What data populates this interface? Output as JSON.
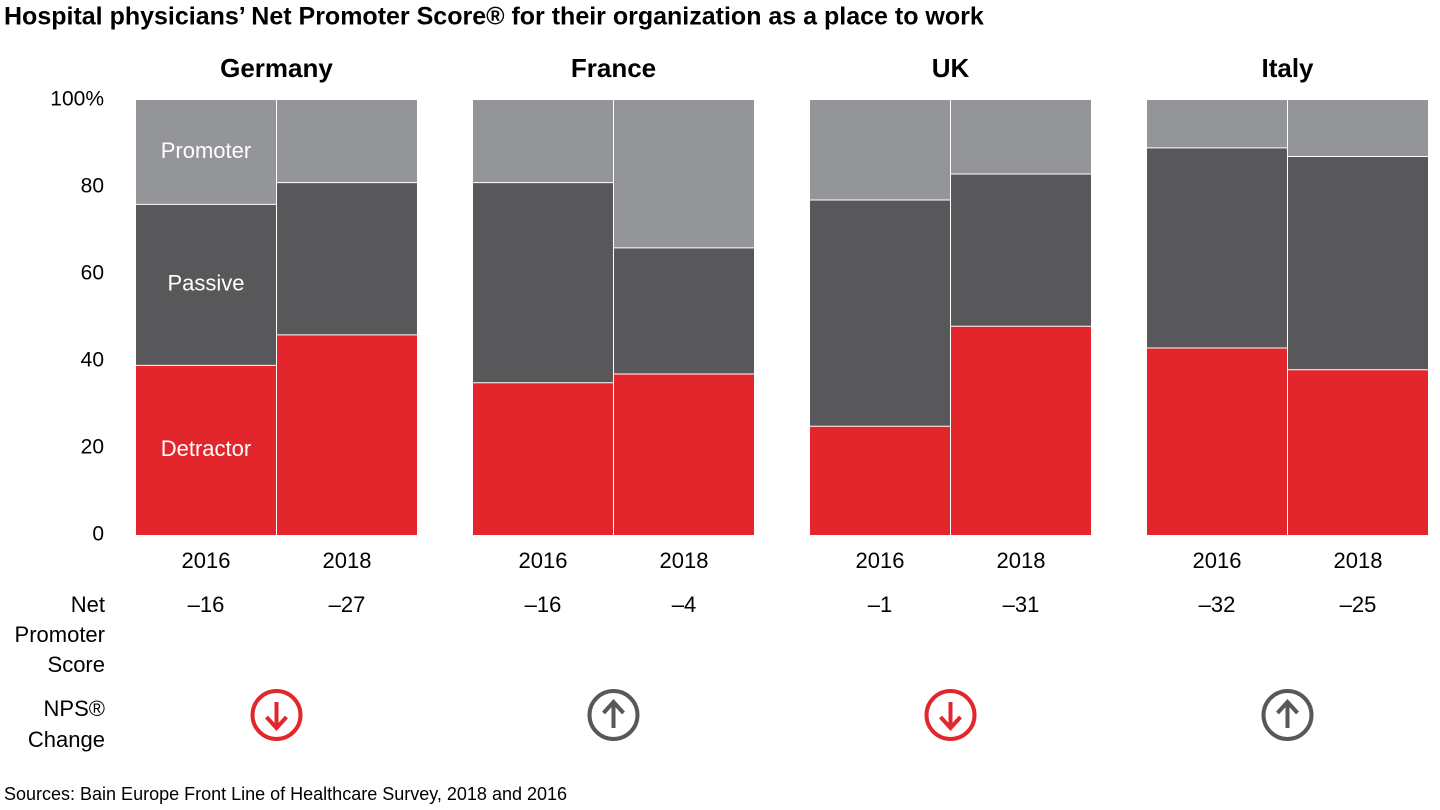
{
  "title": "Hospital physicians’ Net Promoter Score® for their organization as a place to work",
  "source": "Sources: Bain Europe Front Line of Healthcare Survey, 2018 and 2016",
  "nps_label": [
    "Net",
    "Promoter",
    "Score"
  ],
  "change_label": [
    "NPS®",
    "Change"
  ],
  "chart_data": [
    {
      "type": "bar",
      "stacked": true,
      "title": "Germany",
      "categories": [
        "2016",
        "2018"
      ],
      "series": [
        {
          "name": "Detractor",
          "color": "#e3262b",
          "values": [
            39,
            46
          ]
        },
        {
          "name": "Passive",
          "color": "#58585a",
          "values": [
            37,
            35
          ]
        },
        {
          "name": "Promoter",
          "color": "#949598",
          "values": [
            24,
            19
          ]
        }
      ],
      "ylim": [
        0,
        100
      ],
      "yticks": [
        0,
        20,
        40,
        60,
        80,
        {
          "value": 100,
          "label": "100%"
        }
      ],
      "nps": {
        "values": [
          -16,
          -27
        ],
        "value_labels": [
          "–16",
          "–27"
        ]
      },
      "nps_change": "down"
    },
    {
      "type": "bar",
      "stacked": true,
      "title": "France",
      "categories": [
        "2016",
        "2018"
      ],
      "series": [
        {
          "color": "#e3262b",
          "values": [
            35,
            37
          ]
        },
        {
          "color": "#58585a",
          "values": [
            46,
            29
          ]
        },
        {
          "color": "#949598",
          "values": [
            19,
            34
          ]
        }
      ],
      "ylim": [
        0,
        100
      ],
      "nps": {
        "values": [
          -16,
          -4
        ],
        "value_labels": [
          "–16",
          "–4"
        ]
      },
      "nps_change": "up"
    },
    {
      "type": "bar",
      "stacked": true,
      "title": "UK",
      "categories": [
        "2016",
        "2018"
      ],
      "series": [
        {
          "color": "#e3262b",
          "values": [
            25,
            48
          ]
        },
        {
          "color": "#58585a",
          "values": [
            52,
            35
          ]
        },
        {
          "color": "#949598",
          "values": [
            23,
            17
          ]
        }
      ],
      "ylim": [
        0,
        100
      ],
      "nps": {
        "values": [
          -1,
          -31
        ],
        "value_labels": [
          "–1",
          "–31"
        ]
      },
      "nps_change": "down"
    },
    {
      "type": "bar",
      "stacked": true,
      "title": "Italy",
      "categories": [
        "2016",
        "2018"
      ],
      "series": [
        {
          "color": "#e3262b",
          "values": [
            43,
            38
          ]
        },
        {
          "color": "#58585a",
          "values": [
            46,
            49
          ]
        },
        {
          "color": "#949598",
          "values": [
            11,
            13
          ]
        }
      ],
      "ylim": [
        0,
        100
      ],
      "nps": {
        "values": [
          -32,
          -25
        ],
        "value_labels": [
          "–32",
          "–25"
        ]
      },
      "nps_change": "up"
    }
  ]
}
